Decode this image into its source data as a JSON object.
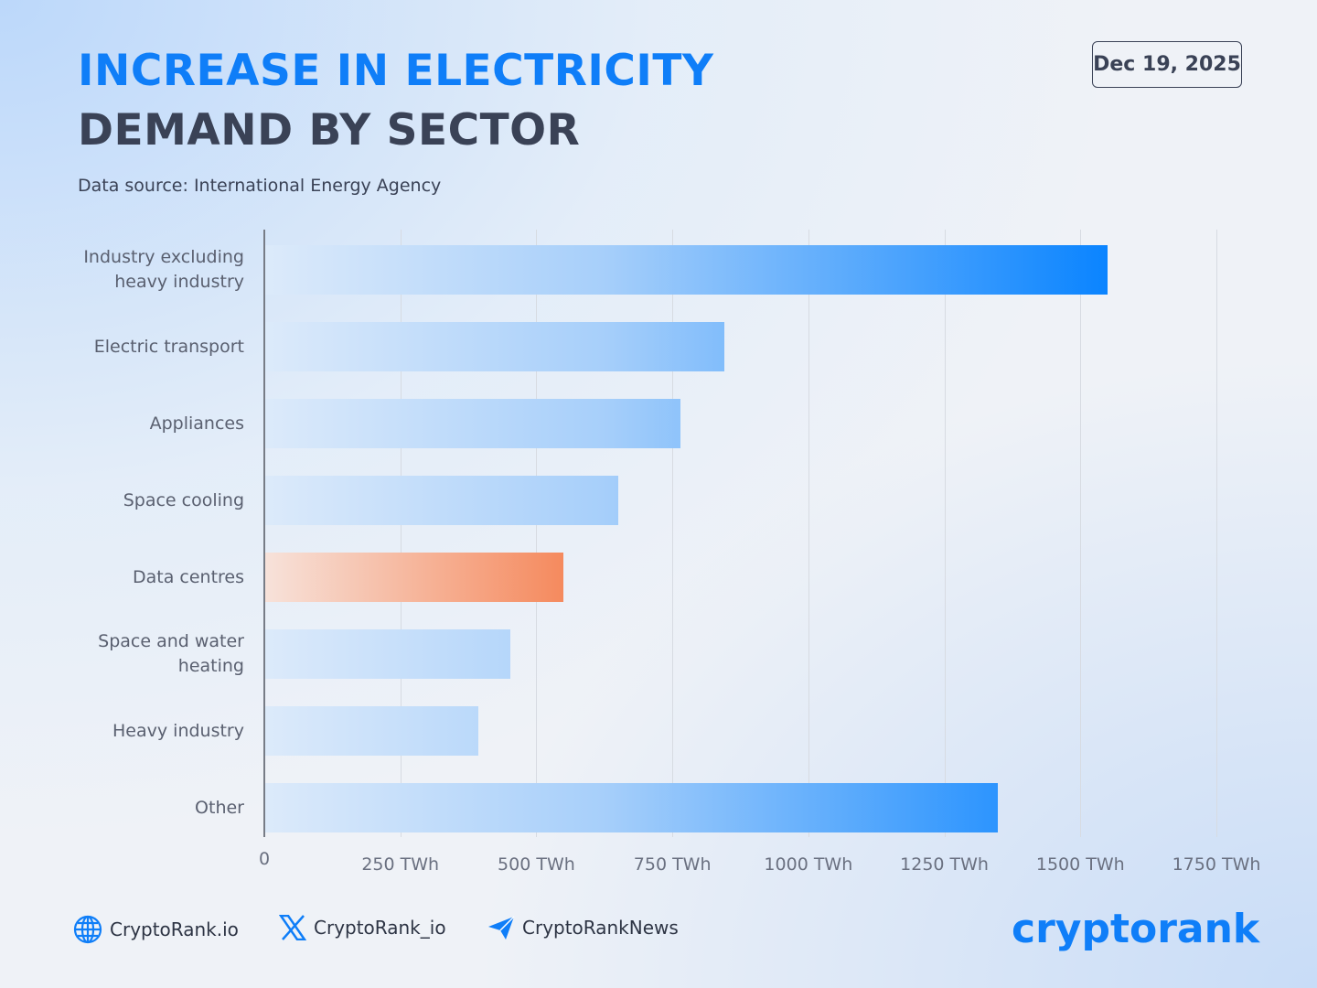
{
  "header": {
    "title_line1": "INCREASE IN ELECTRICITY",
    "title_line2": "DEMAND BY SECTOR",
    "source": "Data source: International Energy Agency",
    "date": "Dec 19, 2025"
  },
  "chart_data": {
    "type": "bar",
    "orientation": "horizontal",
    "categories": [
      "Industry excluding\nheavy industry",
      "Electric transport",
      "Appliances",
      "Space cooling",
      "Data centres",
      "Space and water\nheating",
      "Heavy industry",
      "Other"
    ],
    "values": [
      1550,
      845,
      765,
      650,
      550,
      452,
      393,
      1348
    ],
    "unit": "TWh",
    "xlim": [
      0,
      1750
    ],
    "x_ticks": [
      "0",
      "250 TWh",
      "500 TWh",
      "750 TWh",
      "1000 TWh",
      "1250 TWh",
      "1500 TWh",
      "1750 TWh"
    ],
    "x_tick_values": [
      0,
      250,
      500,
      750,
      1000,
      1250,
      1500,
      1750
    ],
    "grid": "vertical",
    "highlight_category": "Data centres",
    "colors": {
      "bar": "#0a84ff",
      "bar_light": "#dceafa",
      "highlight": "#f58a5e",
      "highlight_light": "#f7e2da"
    }
  },
  "footer": {
    "website": "CryptoRank.io",
    "x_handle": "CryptoRank_io",
    "telegram": "CryptoRankNews",
    "logo": "cryptorank",
    "icons": [
      "globe-icon",
      "x-icon",
      "telegram-icon"
    ]
  }
}
